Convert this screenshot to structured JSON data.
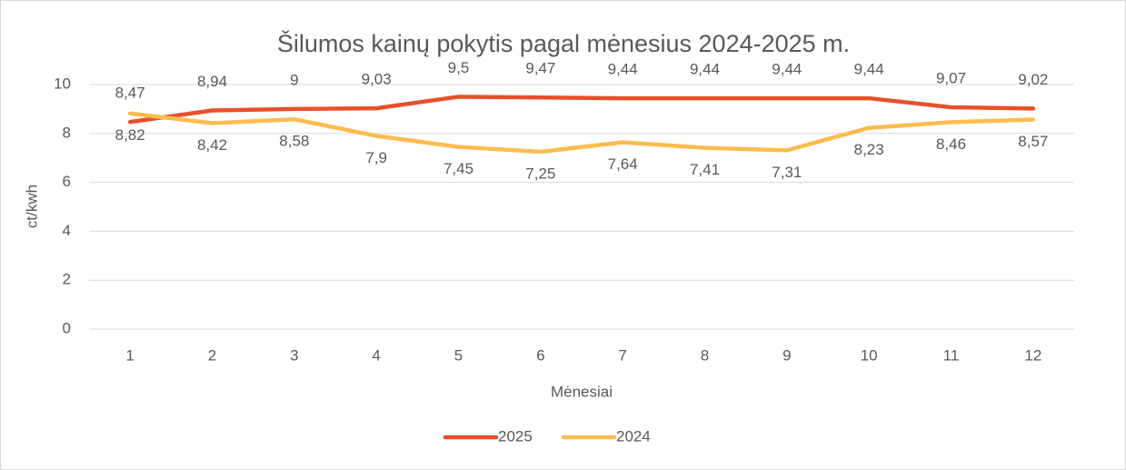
{
  "chart_data": {
    "type": "line",
    "title": "Šilumos kainų pokytis pagal mėnesius 2024-2025 m.",
    "x_label": "Mėnesiai",
    "y_label": "ct/kwh",
    "categories": [
      "1",
      "2",
      "3",
      "4",
      "5",
      "6",
      "7",
      "8",
      "9",
      "10",
      "11",
      "12"
    ],
    "series": [
      {
        "name": "2025",
        "color": "#e8502a",
        "values": [
          8.47,
          8.94,
          9,
          9.03,
          9.5,
          9.47,
          9.44,
          9.44,
          9.44,
          9.44,
          9.07,
          9.02
        ],
        "value_labels": [
          "8,47",
          "8,94",
          "9",
          "9,03",
          "9,5",
          "9,47",
          "9,44",
          "9,44",
          "9,44",
          "9,44",
          "9,07",
          "9,02"
        ]
      },
      {
        "name": "2024",
        "color": "#fbbd4f",
        "values": [
          8.82,
          8.42,
          8.58,
          7.9,
          7.45,
          7.25,
          7.64,
          7.41,
          7.31,
          8.23,
          8.46,
          8.57
        ],
        "value_labels": [
          "8,82",
          "8,42",
          "8,58",
          "7,9",
          "7,45",
          "7,25",
          "7,64",
          "7,41",
          "7,31",
          "8,23",
          "8,46",
          "8,57"
        ]
      }
    ],
    "ylim": [
      0,
      10
    ],
    "yticks": [
      0,
      2,
      4,
      6,
      8,
      10
    ],
    "grid": true,
    "legend": "bottom"
  }
}
